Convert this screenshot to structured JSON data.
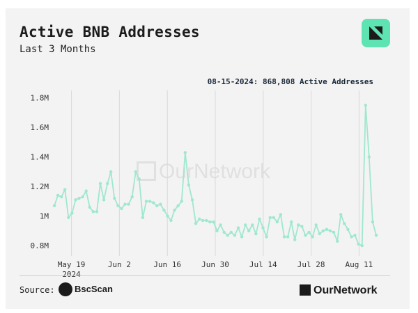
{
  "header": {
    "title": "Active BNB Addresses",
    "subtitle": "Last 3 Months",
    "annotation": "08-15-2024: 868,808 Active Addresses"
  },
  "footer": {
    "source_label": "Source:",
    "source_name": "BscScan",
    "brand": "OurNetwork"
  },
  "watermark": "OurNetwork",
  "colors": {
    "line": "#9fe8cd",
    "marker": "#9fe8cd",
    "grid": "#d9d9d9",
    "logo": "#5ee3b2",
    "text": "#1b1b1b"
  },
  "chart_data": {
    "type": "line",
    "title": "Active BNB Addresses",
    "subtitle": "Last 3 Months",
    "x_start": "2024-05-14",
    "x_end": "2024-08-16",
    "xlim": [
      "2024-05-14",
      "2024-08-16"
    ],
    "ylim": [
      0.73,
      1.85
    ],
    "yticks": [
      {
        "value": 0.8,
        "label": "0.8M"
      },
      {
        "value": 1.0,
        "label": "1M"
      },
      {
        "value": 1.2,
        "label": "1.2M"
      },
      {
        "value": 1.4,
        "label": "1.4M"
      },
      {
        "value": 1.6,
        "label": "1.6M"
      },
      {
        "value": 1.8,
        "label": "1.8M"
      }
    ],
    "xticks": [
      {
        "date": "2024-05-19",
        "label": "May 19",
        "sub": "2024"
      },
      {
        "date": "2024-06-02",
        "label": "Jun 2",
        "sub": ""
      },
      {
        "date": "2024-06-16",
        "label": "Jun 16",
        "sub": ""
      },
      {
        "date": "2024-06-30",
        "label": "Jun 30",
        "sub": ""
      },
      {
        "date": "2024-07-14",
        "label": "Jul 14",
        "sub": ""
      },
      {
        "date": "2024-07-28",
        "label": "Jul 28",
        "sub": ""
      },
      {
        "date": "2024-08-11",
        "label": "Aug 11",
        "sub": ""
      }
    ],
    "grid": "vertical",
    "series": [
      {
        "name": "Active Addresses",
        "unit": "M",
        "values": [
          1.07,
          1.14,
          1.13,
          1.18,
          0.99,
          1.02,
          1.11,
          1.12,
          1.13,
          1.17,
          1.06,
          1.03,
          1.03,
          1.22,
          1.11,
          1.22,
          1.3,
          1.12,
          1.07,
          1.05,
          1.08,
          1.08,
          1.13,
          1.3,
          1.25,
          0.99,
          1.1,
          1.1,
          1.09,
          1.07,
          1.08,
          1.04,
          1.0,
          0.97,
          1.04,
          1.07,
          1.1,
          1.43,
          1.21,
          1.11,
          0.95,
          0.98,
          0.97,
          0.97,
          0.96,
          0.96,
          0.9,
          0.94,
          0.89,
          0.87,
          0.89,
          0.87,
          0.92,
          0.86,
          0.94,
          0.9,
          0.94,
          0.88,
          0.98,
          0.92,
          0.86,
          0.99,
          0.99,
          0.96,
          1.01,
          0.86,
          0.86,
          0.96,
          0.84,
          0.94,
          0.93,
          0.87,
          0.89,
          0.86,
          0.94,
          0.88,
          0.9,
          0.91,
          0.9,
          0.89,
          0.83,
          1.01,
          0.95,
          0.91,
          0.86,
          0.87,
          0.81,
          0.8,
          1.75,
          1.4,
          0.96,
          0.87
        ]
      }
    ]
  }
}
